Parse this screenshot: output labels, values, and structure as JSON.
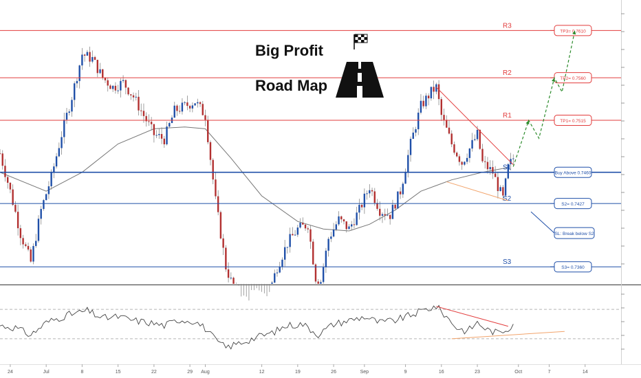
{
  "chart_data": [
    {
      "type": "candlestick",
      "title_line1": "Big Profit",
      "title_line2": "Road Map",
      "colors": {
        "resistance": "#e23b3b",
        "support": "#1f4fa8",
        "candle_up": "#1f4fa8",
        "candle_down": "#b23030",
        "ma": "#777777",
        "trendline_upper": "#e23b3b",
        "trendline_lower": "#f2a36a",
        "projection": "#2a8a2a"
      },
      "levels": [
        {
          "name": "R3",
          "value": 0.761,
          "kind": "resistance",
          "target_label": "TP3= 0.7610"
        },
        {
          "name": "R2",
          "value": 0.756,
          "kind": "resistance",
          "target_label": "TP2= 0.7560"
        },
        {
          "name": "R1",
          "value": 0.7515,
          "kind": "resistance",
          "target_label": "TP1= 0.7515"
        },
        {
          "name": "S1",
          "value": 0.746,
          "kind": "support",
          "target_label": "Buy Above 0.7460"
        },
        {
          "name": "S2",
          "value": 0.7427,
          "kind": "support",
          "target_label": "S2= 0.7427"
        },
        {
          "name": "S3",
          "value": 0.736,
          "kind": "support",
          "target_label": "S3= 0.7360"
        }
      ],
      "stop_note": "SL: Break below S2",
      "x_ticks": [
        "24",
        "Jul",
        "8",
        "15",
        "22",
        "29",
        "Aug",
        "12",
        "19",
        "26",
        "Sep",
        "9",
        "16",
        "23",
        "Oct",
        "7",
        "14"
      ],
      "x_tick_days": [
        -7,
        0,
        7,
        14,
        21,
        28,
        31,
        42,
        49,
        56,
        62,
        70,
        77,
        84,
        92,
        98,
        105
      ],
      "xlim_days": [
        -9,
        112
      ],
      "ylim": [
        0.7342,
        0.7635
      ],
      "close": [
        {
          "x": -9,
          "y": 0.748
        },
        {
          "x": -7,
          "y": 0.744
        },
        {
          "x": -5,
          "y": 0.7395
        },
        {
          "x": -3,
          "y": 0.7365
        },
        {
          "x": -1,
          "y": 0.742
        },
        {
          "x": 1,
          "y": 0.7455
        },
        {
          "x": 3,
          "y": 0.75
        },
        {
          "x": 5,
          "y": 0.754
        },
        {
          "x": 7,
          "y": 0.7585
        },
        {
          "x": 9,
          "y": 0.758
        },
        {
          "x": 11,
          "y": 0.756
        },
        {
          "x": 13,
          "y": 0.755
        },
        {
          "x": 15,
          "y": 0.7555
        },
        {
          "x": 17,
          "y": 0.754
        },
        {
          "x": 19,
          "y": 0.752
        },
        {
          "x": 21,
          "y": 0.75
        },
        {
          "x": 23,
          "y": 0.7495
        },
        {
          "x": 25,
          "y": 0.7525
        },
        {
          "x": 27,
          "y": 0.753
        },
        {
          "x": 29,
          "y": 0.7535
        },
        {
          "x": 31,
          "y": 0.752
        },
        {
          "x": 33,
          "y": 0.743
        },
        {
          "x": 35,
          "y": 0.736
        },
        {
          "x": 37,
          "y": 0.733
        },
        {
          "x": 39,
          "y": 0.732
        },
        {
          "x": 41,
          "y": 0.733
        },
        {
          "x": 43,
          "y": 0.7325
        },
        {
          "x": 45,
          "y": 0.736
        },
        {
          "x": 47,
          "y": 0.7385
        },
        {
          "x": 49,
          "y": 0.74
        },
        {
          "x": 51,
          "y": 0.7405
        },
        {
          "x": 53,
          "y": 0.733
        },
        {
          "x": 55,
          "y": 0.739
        },
        {
          "x": 57,
          "y": 0.741
        },
        {
          "x": 59,
          "y": 0.74
        },
        {
          "x": 61,
          "y": 0.742
        },
        {
          "x": 63,
          "y": 0.7445
        },
        {
          "x": 65,
          "y": 0.742
        },
        {
          "x": 67,
          "y": 0.7415
        },
        {
          "x": 69,
          "y": 0.744
        },
        {
          "x": 71,
          "y": 0.749
        },
        {
          "x": 73,
          "y": 0.753
        },
        {
          "x": 75,
          "y": 0.7545
        },
        {
          "x": 76,
          "y": 0.755
        },
        {
          "x": 77,
          "y": 0.752
        },
        {
          "x": 79,
          "y": 0.749
        },
        {
          "x": 81,
          "y": 0.747
        },
        {
          "x": 83,
          "y": 0.749
        },
        {
          "x": 84,
          "y": 0.75
        },
        {
          "x": 85,
          "y": 0.747
        },
        {
          "x": 87,
          "y": 0.746
        },
        {
          "x": 88,
          "y": 0.7445
        },
        {
          "x": 89,
          "y": 0.7432
        },
        {
          "x": 90,
          "y": 0.7465
        },
        {
          "x": 91,
          "y": 0.7475
        }
      ],
      "moving_average": [
        {
          "x": -9,
          "y": 0.746
        },
        {
          "x": 0,
          "y": 0.744
        },
        {
          "x": 7,
          "y": 0.746
        },
        {
          "x": 14,
          "y": 0.749
        },
        {
          "x": 21,
          "y": 0.7506
        },
        {
          "x": 27,
          "y": 0.7508
        },
        {
          "x": 31,
          "y": 0.7506
        },
        {
          "x": 36,
          "y": 0.7475
        },
        {
          "x": 42,
          "y": 0.7435
        },
        {
          "x": 49,
          "y": 0.7408
        },
        {
          "x": 54,
          "y": 0.74
        },
        {
          "x": 59,
          "y": 0.7398
        },
        {
          "x": 63,
          "y": 0.7405
        },
        {
          "x": 68,
          "y": 0.742
        },
        {
          "x": 73,
          "y": 0.744
        },
        {
          "x": 79,
          "y": 0.7452
        },
        {
          "x": 85,
          "y": 0.746
        },
        {
          "x": 90,
          "y": 0.7465
        }
      ],
      "trendlines": [
        {
          "kind": "upper",
          "from": {
            "x": 76,
            "y": 0.755
          },
          "to": {
            "x": 91,
            "y": 0.7468
          }
        },
        {
          "kind": "lower",
          "from": {
            "x": 78,
            "y": 0.745
          },
          "to": {
            "x": 90,
            "y": 0.743
          }
        }
      ],
      "projection": [
        {
          "x": 91,
          "y": 0.7466
        },
        {
          "x": 94,
          "y": 0.7515
        },
        {
          "x": 96,
          "y": 0.7496
        },
        {
          "x": 99,
          "y": 0.756
        },
        {
          "x": 100.5,
          "y": 0.7545
        },
        {
          "x": 103,
          "y": 0.761
        }
      ]
    },
    {
      "type": "line",
      "ylim": [
        0,
        100
      ],
      "guides": [
        70,
        30
      ],
      "oscillator": [
        {
          "x": -9,
          "y": 48
        },
        {
          "x": -6,
          "y": 45
        },
        {
          "x": -3,
          "y": 35
        },
        {
          "x": 0,
          "y": 52
        },
        {
          "x": 4,
          "y": 62
        },
        {
          "x": 8,
          "y": 68
        },
        {
          "x": 11,
          "y": 58
        },
        {
          "x": 14,
          "y": 60
        },
        {
          "x": 17,
          "y": 55
        },
        {
          "x": 20,
          "y": 52
        },
        {
          "x": 23,
          "y": 48
        },
        {
          "x": 26,
          "y": 56
        },
        {
          "x": 29,
          "y": 54
        },
        {
          "x": 31,
          "y": 44
        },
        {
          "x": 33,
          "y": 28
        },
        {
          "x": 35,
          "y": 18
        },
        {
          "x": 38,
          "y": 25
        },
        {
          "x": 41,
          "y": 32
        },
        {
          "x": 44,
          "y": 38
        },
        {
          "x": 47,
          "y": 48
        },
        {
          "x": 50,
          "y": 50
        },
        {
          "x": 53,
          "y": 36
        },
        {
          "x": 56,
          "y": 50
        },
        {
          "x": 59,
          "y": 55
        },
        {
          "x": 62,
          "y": 60
        },
        {
          "x": 65,
          "y": 52
        },
        {
          "x": 68,
          "y": 55
        },
        {
          "x": 71,
          "y": 62
        },
        {
          "x": 74,
          "y": 70
        },
        {
          "x": 76,
          "y": 74
        },
        {
          "x": 78,
          "y": 60
        },
        {
          "x": 80,
          "y": 45
        },
        {
          "x": 82,
          "y": 40
        },
        {
          "x": 84,
          "y": 52
        },
        {
          "x": 86,
          "y": 42
        },
        {
          "x": 88,
          "y": 38
        },
        {
          "x": 90,
          "y": 44
        },
        {
          "x": 91,
          "y": 51
        }
      ],
      "trendlines": [
        {
          "kind": "upper",
          "from": {
            "x": 76,
            "y": 74
          },
          "to": {
            "x": 90,
            "y": 47
          }
        },
        {
          "kind": "lower",
          "from": {
            "x": 79,
            "y": 30
          },
          "to": {
            "x": 101,
            "y": 40
          }
        }
      ]
    }
  ]
}
